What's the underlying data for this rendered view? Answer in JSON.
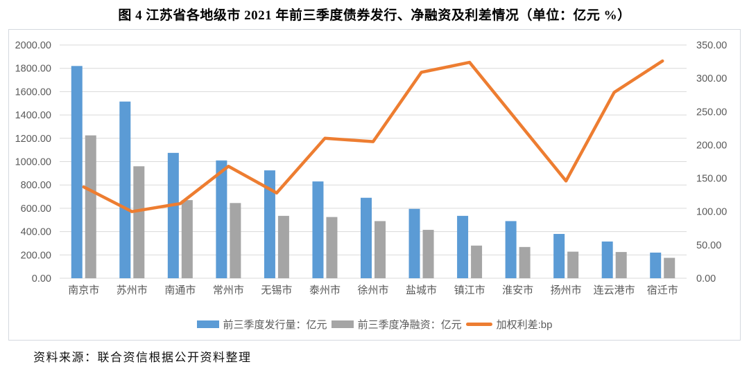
{
  "title": "图 4  江苏省各地级市 2021 年前三季度债券发行、净融资及利差情况（单位：亿元  %）",
  "source_note": "资料来源：联合资信根据公开资料整理",
  "colors": {
    "issuance_bar": "#5B9BD5",
    "net_financing_bar": "#A5A5A5",
    "spread_line": "#ED7D31",
    "axis_text": "#595959",
    "gridline": "#D9D9D9",
    "chart_border": "#D4D9DF",
    "title_text": "#000000"
  },
  "legend": [
    {
      "label": "前三季度发行量：亿元",
      "swatch": "bar",
      "color": "#5B9BD5"
    },
    {
      "label": "前三季度净融资：亿元",
      "swatch": "bar",
      "color": "#A5A5A5"
    },
    {
      "label": "加权利差:bp",
      "swatch": "line",
      "color": "#ED7D31"
    }
  ],
  "chart_data": {
    "type": "bar",
    "subtype": "bar+line combo, dual axis",
    "title": "江苏省各地级市2021年前三季度债券发行、净融资及利差情况",
    "xlabel": "",
    "ylabel_left": "亿元",
    "ylabel_right": "bp",
    "grid": true,
    "legend_position": "bottom",
    "categories": [
      "南京市",
      "苏州市",
      "南通市",
      "常州市",
      "无锡市",
      "泰州市",
      "徐州市",
      "盐城市",
      "镇江市",
      "淮安市",
      "扬州市",
      "连云港市",
      "宿迁市"
    ],
    "left_axis": {
      "min": 0,
      "max": 2000,
      "step": 200,
      "tick_format": "0.00"
    },
    "right_axis": {
      "min": 0,
      "max": 350,
      "step": 50,
      "tick_format": "0.00"
    },
    "series": [
      {
        "name": "前三季度发行量：亿元",
        "type": "bar",
        "axis": "left",
        "color": "#5B9BD5",
        "values": [
          1820,
          1515,
          1075,
          1010,
          925,
          830,
          690,
          595,
          535,
          490,
          380,
          315,
          220
        ]
      },
      {
        "name": "前三季度净融资：亿元",
        "type": "bar",
        "axis": "left",
        "color": "#A5A5A5",
        "values": [
          1225,
          960,
          670,
          645,
          535,
          525,
          490,
          415,
          280,
          268,
          228,
          225,
          175
        ]
      },
      {
        "name": "加权利差:bp",
        "type": "line",
        "axis": "right",
        "color": "#ED7D31",
        "values": [
          137,
          100,
          112,
          168,
          128,
          210,
          205,
          309,
          324,
          235,
          146,
          279,
          326
        ]
      }
    ]
  }
}
